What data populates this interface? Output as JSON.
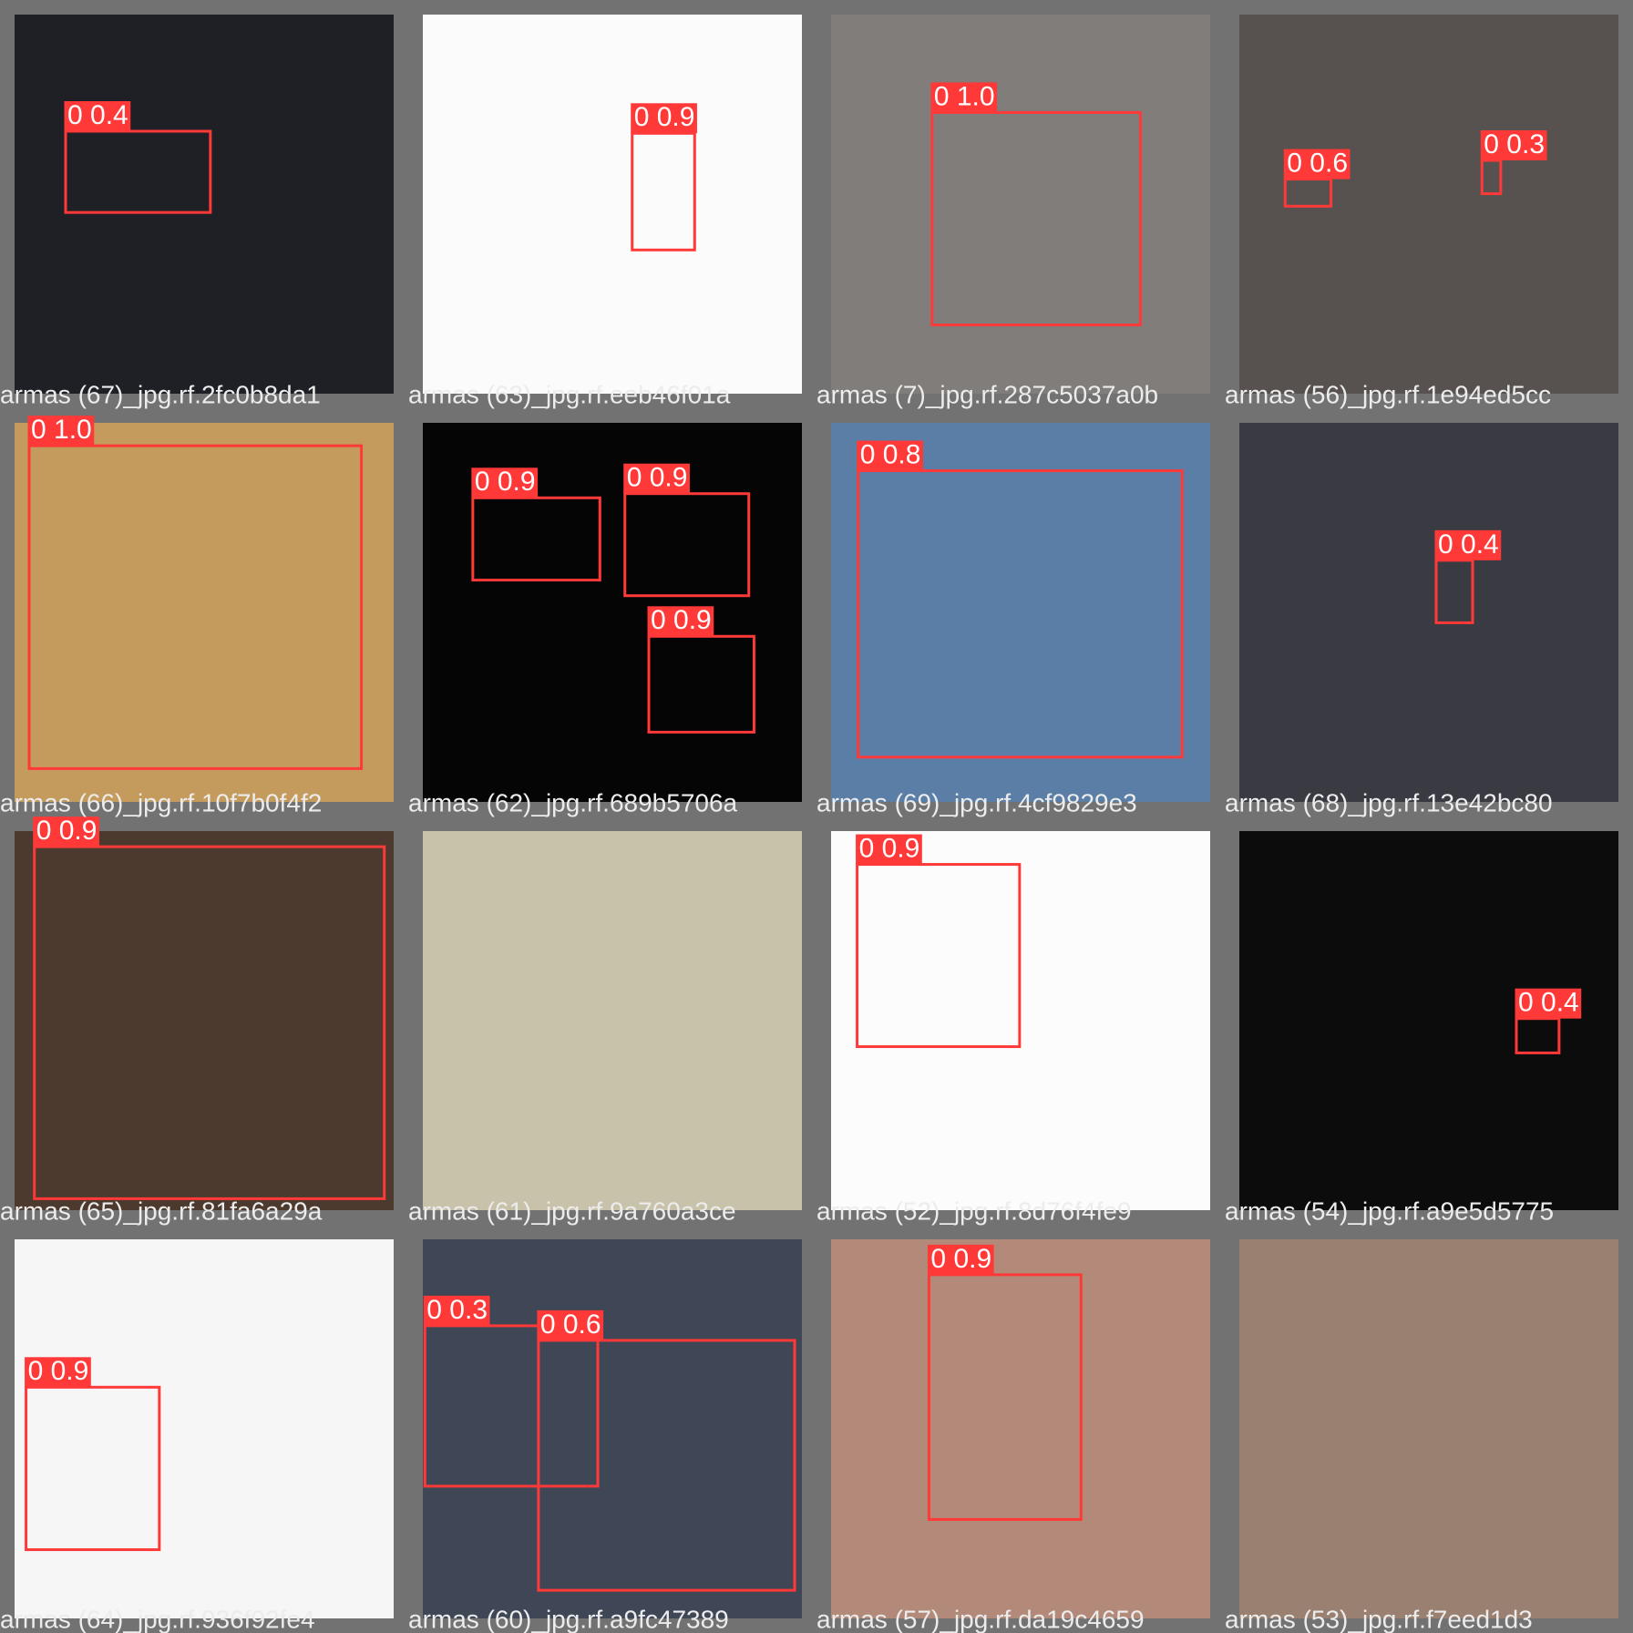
{
  "tiles": [
    {
      "filename": "armas (67)_jpg.rf.2fc0b8da1",
      "detections": [
        {
          "label": "0 0.4"
        }
      ]
    },
    {
      "filename": "armas (63)_jpg.rf.eeb46f01a",
      "detections": [
        {
          "label": "0 0.9"
        }
      ]
    },
    {
      "filename": "armas (7)_jpg.rf.287c5037a0b",
      "detections": [
        {
          "label": "0 1.0"
        }
      ]
    },
    {
      "filename": "armas (56)_jpg.rf.1e94ed5cc",
      "detections": [
        {
          "label": "0 0.6"
        },
        {
          "label": "0 0.3"
        }
      ]
    },
    {
      "filename": "armas (66)_jpg.rf.10f7b0f4f2",
      "detections": [
        {
          "label": "0 1.0"
        }
      ]
    },
    {
      "filename": "armas (62)_jpg.rf.689b5706a",
      "detections": [
        {
          "label": "0 0.9"
        },
        {
          "label": "0 0.9"
        },
        {
          "label": "0 0.9"
        }
      ]
    },
    {
      "filename": "armas (69)_jpg.rf.4cf9829e3",
      "detections": [
        {
          "label": "0 0.8"
        }
      ]
    },
    {
      "filename": "armas (68)_jpg.rf.13e42bc80",
      "detections": [
        {
          "label": "0 0.4"
        }
      ]
    },
    {
      "filename": "armas (65)_jpg.rf.81fa6a29a",
      "detections": [
        {
          "label": "0 0.9"
        }
      ]
    },
    {
      "filename": "armas (61)_jpg.rf.9a760a3ce",
      "detections": []
    },
    {
      "filename": "armas (52)_jpg.rf.8d76f4fe9",
      "detections": [
        {
          "label": "0 0.9"
        }
      ]
    },
    {
      "filename": "armas (54)_jpg.rf.a9e5d5775",
      "detections": [
        {
          "label": "0 0.4"
        }
      ]
    },
    {
      "filename": "armas (64)_jpg.rf.936f92fe4",
      "detections": [
        {
          "label": "0 0.9"
        }
      ]
    },
    {
      "filename": "armas (60)_jpg.rf.a9fc47389",
      "detections": [
        {
          "label": "0 0.3"
        },
        {
          "label": "0 0.6"
        }
      ]
    },
    {
      "filename": "armas (57)_jpg.rf.da19c4659",
      "detections": [
        {
          "label": "0 0.9"
        }
      ]
    },
    {
      "filename": "armas (53)_jpg.rf.f7eed1d3",
      "detections": []
    }
  ]
}
